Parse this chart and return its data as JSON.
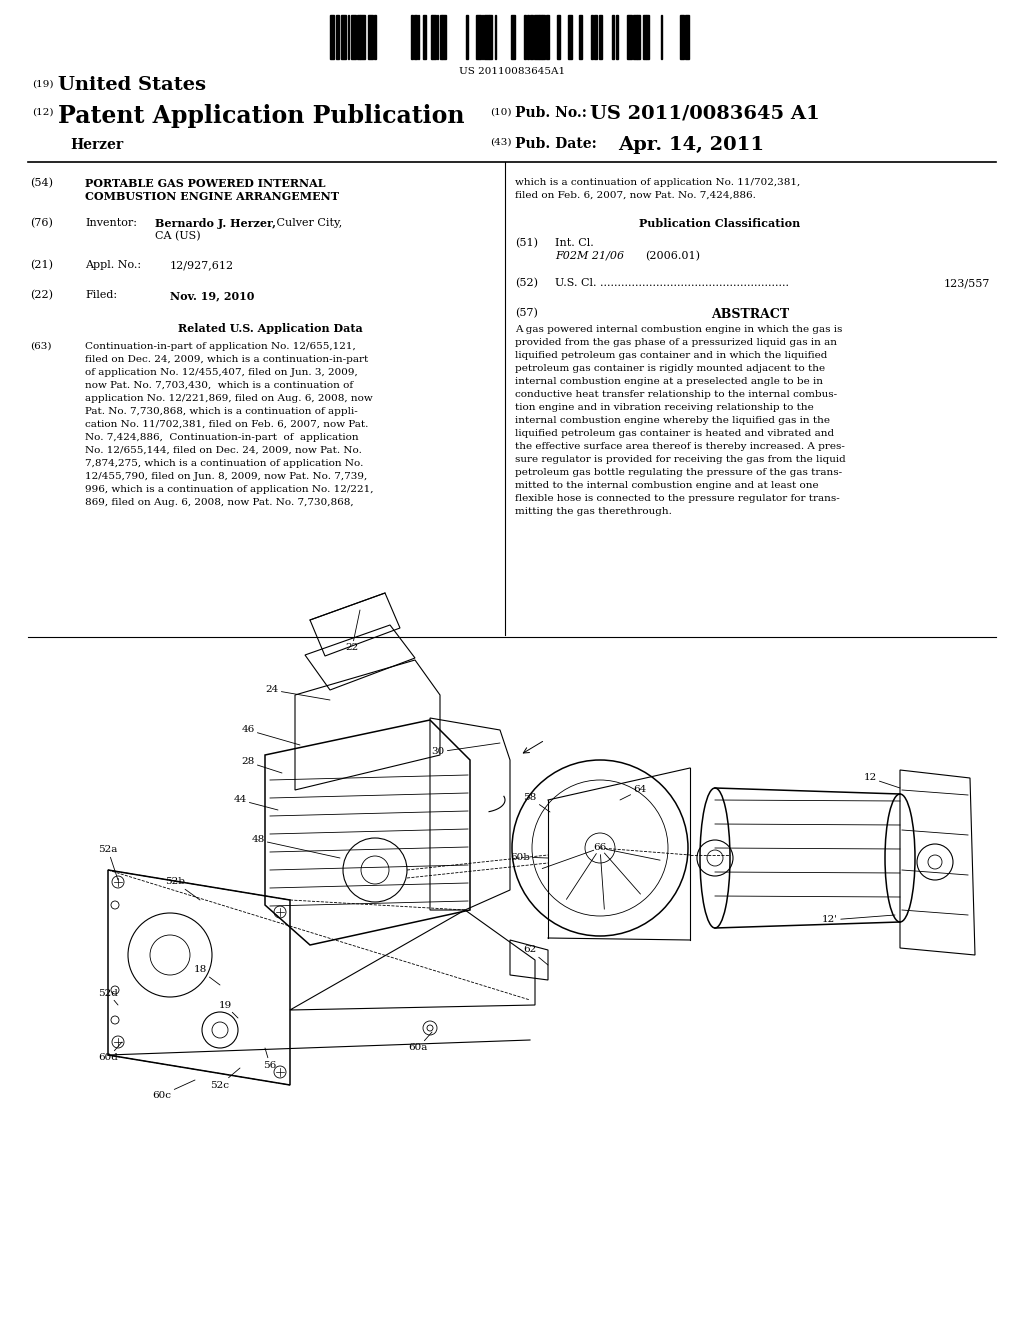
{
  "background_color": "#ffffff",
  "barcode_text": "US 20110083645A1",
  "field54_title1": "PORTABLE GAS POWERED INTERNAL",
  "field54_title2": "COMBUSTION ENGINE ARRANGEMENT",
  "field76_value_bold": "Bernardo J. Herzer,",
  "field76_value_normal": " Culver City,",
  "field76_value2": "CA (US)",
  "field21_value": "12/927,612",
  "field22_value": "Nov. 19, 2010",
  "field63_lines": [
    "Continuation-in-part of application No. 12/655,121,",
    "filed on Dec. 24, 2009, which is a continuation-in-part",
    "of application No. 12/455,407, filed on Jun. 3, 2009,",
    "now Pat. No. 7,703,430,  which is a continuation of",
    "application No. 12/221,869, filed on Aug. 6, 2008, now",
    "Pat. No. 7,730,868, which is a continuation of appli-",
    "cation No. 11/702,381, filed on Feb. 6, 2007, now Pat.",
    "No. 7,424,886,  Continuation-in-part  of  application",
    "No. 12/655,144, filed on Dec. 24, 2009, now Pat. No.",
    "7,874,275, which is a continuation of application No.",
    "12/455,790, filed on Jun. 8, 2009, now Pat. No. 7,739,",
    "996, which is a continuation of application No. 12/221,",
    "869, filed on Aug. 6, 2008, now Pat. No. 7,730,868,"
  ],
  "right_cont_lines": [
    "which is a continuation of application No. 11/702,381,",
    "filed on Feb. 6, 2007, now Pat. No. 7,424,886."
  ],
  "field51_italic": "F02M 21/06",
  "field51_paren": "(2006.01)",
  "field52_dots": "U.S. Cl. ......................................................",
  "field52_value": "123/557",
  "abstract_lines": [
    "A gas powered internal combustion engine in which the gas is",
    "provided from the gas phase of a pressurized liquid gas in an",
    "liquified petroleum gas container and in which the liquified",
    "petroleum gas container is rigidly mounted adjacent to the",
    "internal combustion engine at a preselected angle to be in",
    "conductive heat transfer relationship to the internal combus-",
    "tion engine and in vibration receiving relationship to the",
    "internal combustion engine whereby the liquified gas in the",
    "liquified petroleum gas container is heated and vibrated and",
    "the effective surface area thereof is thereby increased. A pres-",
    "sure regulator is provided for receiving the gas from the liquid",
    "petroleum gas bottle regulating the pressure of the gas trans-",
    "mitted to the internal combustion engine and at least one",
    "flexible hose is connected to the pressure regulator for trans-",
    "mitting the gas therethrough."
  ]
}
